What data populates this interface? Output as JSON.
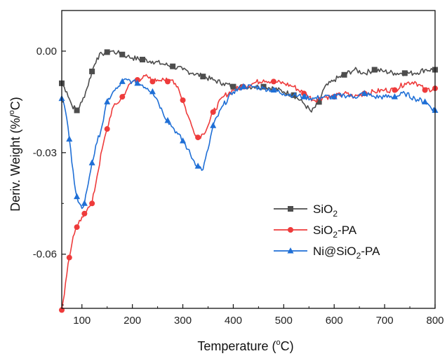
{
  "chart_data": {
    "type": "line",
    "xlabel": "Temperature (",
    "xlabel_sup": "o",
    "xlabel_end": "C)",
    "ylabel": "Deriv. Weight (%/",
    "ylabel_sup": "o",
    "ylabel_end": "C)",
    "xlim": [
      60,
      800
    ],
    "ylim": [
      -0.076,
      0.012
    ],
    "x_ticks": [
      100,
      200,
      300,
      400,
      500,
      600,
      700,
      800
    ],
    "x_tick_labels": [
      "100",
      "200",
      "300",
      "400",
      "500",
      "600",
      "700",
      "800"
    ],
    "y_ticks": [
      0.0,
      -0.03,
      -0.06
    ],
    "y_tick_labels": [
      "0.00",
      "-0.03",
      "-0.06"
    ],
    "grid": false,
    "legend_position": "bottom-right",
    "series": [
      {
        "name": "SiO2",
        "name_parts": [
          "SiO",
          "2",
          ""
        ],
        "color": "#4d4d4d",
        "marker": "square",
        "x": [
          60,
          70,
          80,
          90,
          100,
          110,
          120,
          130,
          140,
          150,
          160,
          170,
          180,
          190,
          200,
          220,
          240,
          260,
          280,
          300,
          320,
          340,
          360,
          380,
          400,
          420,
          440,
          460,
          480,
          500,
          520,
          540,
          555,
          570,
          580,
          600,
          620,
          640,
          660,
          680,
          700,
          720,
          740,
          760,
          780,
          800
        ],
        "values": [
          -0.0095,
          -0.012,
          -0.016,
          -0.0175,
          -0.015,
          -0.011,
          -0.006,
          -0.002,
          -0.0008,
          -0.0003,
          0.0,
          -0.0005,
          -0.001,
          -0.0015,
          -0.002,
          -0.0025,
          -0.003,
          -0.0038,
          -0.0045,
          -0.0055,
          -0.0065,
          -0.0075,
          -0.0085,
          -0.0095,
          -0.0105,
          -0.0105,
          -0.0105,
          -0.0105,
          -0.011,
          -0.012,
          -0.013,
          -0.0155,
          -0.018,
          -0.015,
          -0.011,
          -0.0085,
          -0.007,
          -0.0055,
          -0.0065,
          -0.0055,
          -0.006,
          -0.0065,
          -0.0065,
          -0.0065,
          -0.0055,
          -0.0055
        ]
      },
      {
        "name": "SiO2-PA",
        "name_parts": [
          "SiO",
          "2",
          "-PA"
        ],
        "color": "#ee3b3b",
        "marker": "circle",
        "x": [
          60,
          65,
          70,
          75,
          80,
          85,
          90,
          95,
          100,
          105,
          110,
          115,
          120,
          130,
          140,
          150,
          160,
          170,
          180,
          190,
          200,
          210,
          220,
          230,
          240,
          250,
          260,
          270,
          280,
          290,
          300,
          310,
          320,
          330,
          340,
          350,
          360,
          380,
          400,
          420,
          440,
          460,
          480,
          500,
          520,
          540,
          560,
          580,
          600,
          620,
          640,
          660,
          680,
          700,
          720,
          740,
          760,
          780,
          800
        ],
        "values": [
          -0.0765,
          -0.072,
          -0.066,
          -0.061,
          -0.057,
          -0.054,
          -0.052,
          -0.05,
          -0.049,
          -0.048,
          -0.047,
          -0.046,
          -0.045,
          -0.037,
          -0.029,
          -0.023,
          -0.017,
          -0.0155,
          -0.0135,
          -0.011,
          -0.009,
          -0.0085,
          -0.008,
          -0.0075,
          -0.009,
          -0.0085,
          -0.008,
          -0.009,
          -0.0085,
          -0.0105,
          -0.0145,
          -0.019,
          -0.023,
          -0.0255,
          -0.0245,
          -0.022,
          -0.018,
          -0.0135,
          -0.0115,
          -0.0105,
          -0.0095,
          -0.0085,
          -0.009,
          -0.0095,
          -0.0105,
          -0.0125,
          -0.0145,
          -0.0135,
          -0.0135,
          -0.0125,
          -0.0135,
          -0.0125,
          -0.012,
          -0.0115,
          -0.0115,
          -0.0095,
          -0.009,
          -0.0115,
          -0.011
        ]
      },
      {
        "name": "Ni@SiO2-PA",
        "name_parts": [
          "Ni@SiO",
          "2",
          "-PA"
        ],
        "color": "#1f6fd6",
        "marker": "triangle",
        "x": [
          60,
          65,
          70,
          75,
          80,
          85,
          90,
          95,
          100,
          105,
          110,
          115,
          120,
          130,
          140,
          150,
          160,
          170,
          180,
          190,
          200,
          210,
          220,
          230,
          240,
          250,
          260,
          270,
          280,
          290,
          300,
          310,
          320,
          330,
          340,
          350,
          360,
          380,
          400,
          420,
          440,
          460,
          480,
          500,
          520,
          540,
          560,
          580,
          600,
          620,
          640,
          660,
          680,
          700,
          720,
          740,
          760,
          780,
          800
        ],
        "values": [
          -0.014,
          -0.016,
          -0.02,
          -0.026,
          -0.033,
          -0.039,
          -0.043,
          -0.045,
          -0.0465,
          -0.045,
          -0.041,
          -0.037,
          -0.033,
          -0.027,
          -0.022,
          -0.015,
          -0.0125,
          -0.011,
          -0.009,
          -0.0085,
          -0.009,
          -0.0095,
          -0.01,
          -0.011,
          -0.012,
          -0.0145,
          -0.018,
          -0.0205,
          -0.0225,
          -0.0245,
          -0.0265,
          -0.029,
          -0.032,
          -0.034,
          -0.035,
          -0.029,
          -0.022,
          -0.016,
          -0.012,
          -0.0105,
          -0.0105,
          -0.011,
          -0.0115,
          -0.0125,
          -0.013,
          -0.0135,
          -0.014,
          -0.0135,
          -0.0135,
          -0.013,
          -0.0135,
          -0.0125,
          -0.0135,
          -0.0135,
          -0.0135,
          -0.0125,
          -0.014,
          -0.015,
          -0.0175
        ]
      }
    ]
  }
}
